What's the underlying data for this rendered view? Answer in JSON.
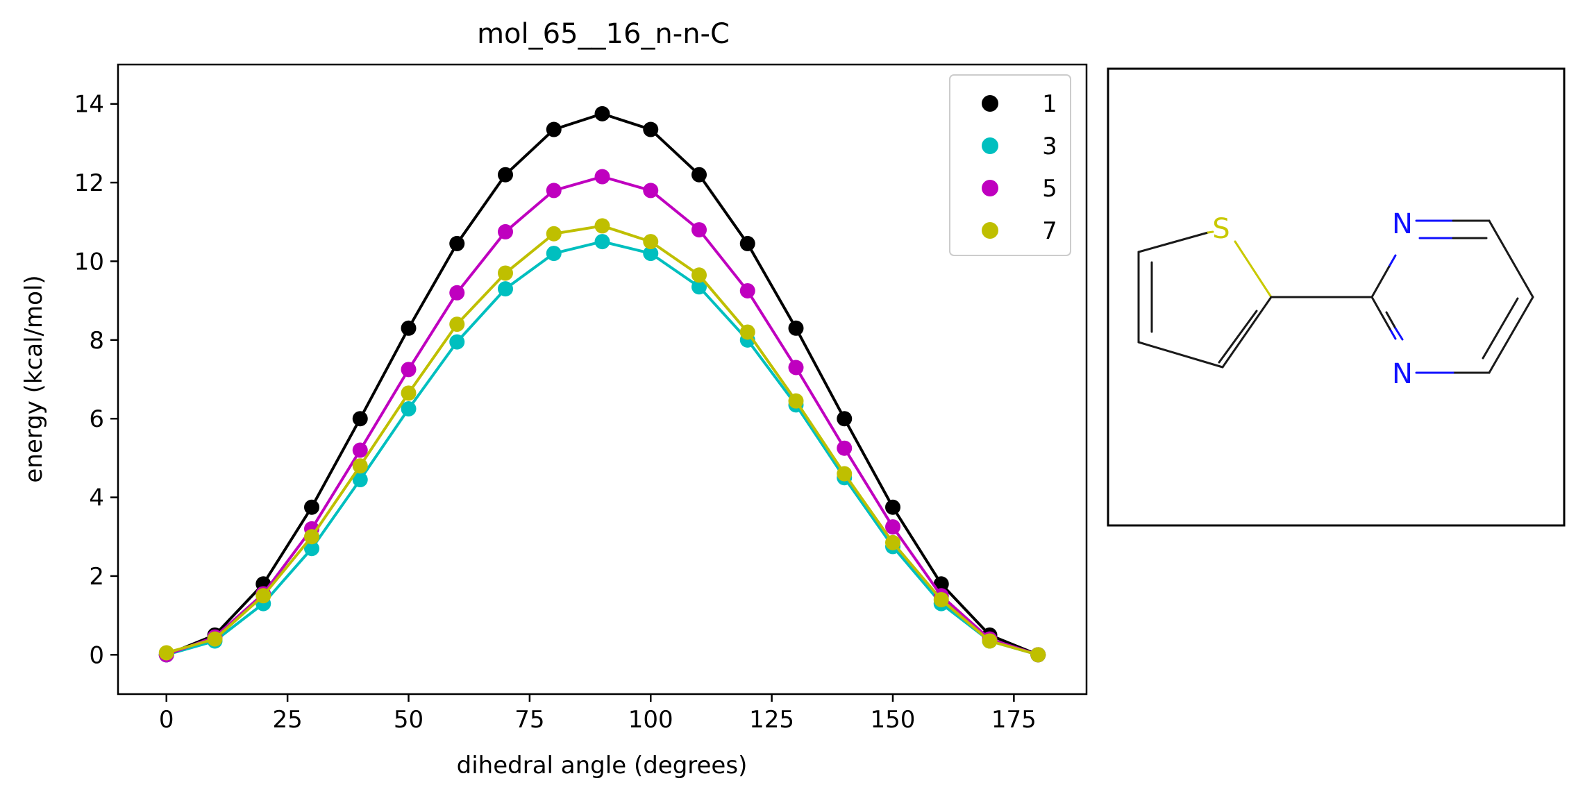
{
  "chart_data": {
    "type": "line",
    "title": "mol_65__16_n-n-C",
    "xlabel": "dihedral angle (degrees)",
    "ylabel": "energy (kcal/mol)",
    "xlim": [
      -10,
      190
    ],
    "ylim": [
      -1,
      15
    ],
    "xticks": [
      0,
      25,
      50,
      75,
      100,
      125,
      150,
      175
    ],
    "yticks": [
      0,
      2,
      4,
      6,
      8,
      10,
      12,
      14
    ],
    "grid": false,
    "legend_position": "top-right",
    "marker": "circle",
    "x": [
      0,
      10,
      20,
      30,
      40,
      50,
      60,
      70,
      80,
      90,
      100,
      110,
      120,
      130,
      140,
      150,
      160,
      170,
      180
    ],
    "series": [
      {
        "name": "1",
        "color": "#000000",
        "values": [
          0.0,
          0.5,
          1.8,
          3.75,
          6.0,
          8.3,
          10.45,
          12.2,
          13.35,
          13.75,
          13.35,
          12.2,
          10.45,
          8.3,
          6.0,
          3.75,
          1.8,
          0.5,
          0.0
        ]
      },
      {
        "name": "3",
        "color": "#00bfbf",
        "values": [
          0.0,
          0.35,
          1.3,
          2.7,
          4.45,
          6.25,
          7.95,
          9.3,
          10.2,
          10.5,
          10.2,
          9.35,
          8.0,
          6.35,
          4.5,
          2.75,
          1.3,
          0.35,
          0.0
        ]
      },
      {
        "name": "5",
        "color": "#bf00bf",
        "values": [
          0.0,
          0.45,
          1.55,
          3.2,
          5.2,
          7.25,
          9.2,
          10.75,
          11.8,
          12.15,
          11.8,
          10.8,
          9.25,
          7.3,
          5.25,
          3.25,
          1.5,
          0.4,
          0.0
        ]
      },
      {
        "name": "7",
        "color": "#bfbf00",
        "values": [
          0.05,
          0.4,
          1.5,
          3.0,
          4.8,
          6.65,
          8.4,
          9.7,
          10.7,
          10.9,
          10.5,
          9.65,
          8.2,
          6.45,
          4.6,
          2.85,
          1.4,
          0.35,
          0.0
        ]
      }
    ]
  },
  "molecule": {
    "atom_labels": {
      "sulfur": "S",
      "nitrogen_top": "N",
      "nitrogen_bottom": "N"
    },
    "colors": {
      "sulfur": "#c9c900",
      "nitrogen": "#1010ff",
      "bond": "#1a1a1a"
    }
  }
}
